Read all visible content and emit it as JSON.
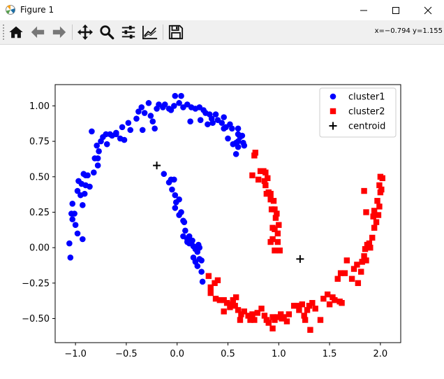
{
  "window": {
    "title": "Figure 1",
    "icons": {
      "app": "matplotlib-icon",
      "minimize": "minimize-icon",
      "maximize": "maximize-icon",
      "close": "close-icon"
    }
  },
  "toolbar": {
    "tools": [
      {
        "name": "home-button",
        "icon": "home-icon"
      },
      {
        "name": "back-button",
        "icon": "arrow-left-icon"
      },
      {
        "name": "forward-button",
        "icon": "arrow-right-icon"
      },
      {
        "name": "pan-button",
        "icon": "move-icon"
      },
      {
        "name": "zoom-button",
        "icon": "magnifier-icon"
      },
      {
        "name": "subplots-button",
        "icon": "sliders-icon"
      },
      {
        "name": "edit-axes-button",
        "icon": "line-chart-icon"
      },
      {
        "name": "save-button",
        "icon": "floppy-disk-icon"
      }
    ],
    "coordinates": "x=−0.794 y=1.155"
  },
  "chart_data": {
    "type": "scatter",
    "xlim": [
      -1.2,
      2.2
    ],
    "ylim": [
      -0.67,
      1.15
    ],
    "xticks": [
      -1.0,
      -0.5,
      0.0,
      0.5,
      1.0,
      1.5,
      2.0
    ],
    "xtick_labels": [
      "−1.0",
      "−0.5",
      "0.0",
      "0.5",
      "1.0",
      "1.5",
      "2.0"
    ],
    "yticks": [
      -0.5,
      -0.25,
      0.0,
      0.25,
      0.5,
      0.75,
      1.0
    ],
    "ytick_labels": [
      "−0.50",
      "−0.25",
      "0.00",
      "0.25",
      "0.50",
      "0.75",
      "1.00"
    ],
    "grid": false,
    "legend_position": "top-right",
    "series": [
      {
        "name": "cluster1",
        "marker": "circle",
        "color": "#0000ff",
        "points": [
          [
            -1.06,
            0.03
          ],
          [
            -1.04,
            0.24
          ],
          [
            -1.03,
            0.2
          ],
          [
            -1.01,
            0.24
          ],
          [
            -1.0,
            0.16
          ],
          [
            -1.03,
            0.31
          ],
          [
            -1.05,
            -0.07
          ],
          [
            -0.98,
            0.1
          ],
          [
            -0.93,
            0.06
          ],
          [
            -0.98,
            0.4
          ],
          [
            -0.97,
            0.47
          ],
          [
            -0.94,
            0.45
          ],
          [
            -0.95,
            0.37
          ],
          [
            -0.92,
            0.52
          ],
          [
            -0.91,
            0.38
          ],
          [
            -0.93,
            0.3
          ],
          [
            -0.9,
            0.44
          ],
          [
            -0.88,
            0.51
          ],
          [
            -0.86,
            0.43
          ],
          [
            -0.82,
            0.53
          ],
          [
            -0.9,
            0.51
          ],
          [
            -0.81,
            0.63
          ],
          [
            -0.78,
            0.58
          ],
          [
            -0.77,
            0.68
          ],
          [
            -0.79,
            0.72
          ],
          [
            -0.75,
            0.75
          ],
          [
            -0.73,
            0.78
          ],
          [
            -0.69,
            0.73
          ],
          [
            -0.64,
            0.79
          ],
          [
            -0.6,
            0.8
          ],
          [
            -0.56,
            0.77
          ],
          [
            -0.54,
            0.85
          ],
          [
            -0.48,
            0.88
          ],
          [
            -0.46,
            0.83
          ],
          [
            -0.52,
            0.76
          ],
          [
            -0.6,
            0.81
          ],
          [
            -0.66,
            0.8
          ],
          [
            -0.7,
            0.8
          ],
          [
            -0.78,
            0.63
          ],
          [
            -0.84,
            0.82
          ],
          [
            -0.4,
            0.91
          ],
          [
            -0.38,
            0.96
          ],
          [
            -0.35,
            0.99
          ],
          [
            -0.34,
            0.83
          ],
          [
            -0.32,
            0.95
          ],
          [
            -0.28,
            1.02
          ],
          [
            -0.24,
            0.89
          ],
          [
            -0.2,
            0.98
          ],
          [
            -0.26,
            0.93
          ],
          [
            -0.22,
            0.84
          ],
          [
            -0.18,
            1.01
          ],
          [
            -0.14,
            0.99
          ],
          [
            -0.12,
            1.01
          ],
          [
            -0.08,
            0.98
          ],
          [
            -0.06,
            0.97
          ],
          [
            -0.03,
            1.0
          ],
          [
            -0.02,
            1.07
          ],
          [
            0.04,
            1.07
          ],
          [
            0.02,
            1.02
          ],
          [
            0.06,
            0.99
          ],
          [
            0.1,
            1.01
          ],
          [
            0.14,
            0.99
          ],
          [
            0.18,
            0.98
          ],
          [
            0.22,
            0.99
          ],
          [
            0.26,
            0.97
          ],
          [
            0.28,
            0.95
          ],
          [
            0.32,
            0.94
          ],
          [
            0.34,
            0.91
          ],
          [
            0.38,
            0.94
          ],
          [
            0.4,
            0.9
          ],
          [
            0.44,
            0.88
          ],
          [
            0.46,
            0.92
          ],
          [
            0.48,
            0.85
          ],
          [
            0.54,
            0.84
          ],
          [
            0.52,
            0.87
          ],
          [
            0.6,
            0.84
          ],
          [
            0.6,
            0.8
          ],
          [
            0.62,
            0.78
          ],
          [
            0.64,
            0.79
          ],
          [
            0.6,
            0.75
          ],
          [
            0.58,
            0.74
          ],
          [
            0.65,
            0.74
          ],
          [
            0.66,
            0.72
          ],
          [
            0.55,
            0.73
          ],
          [
            0.6,
            0.71
          ],
          [
            0.58,
            0.66
          ],
          [
            0.13,
            0.89
          ],
          [
            0.23,
            0.9
          ],
          [
            0.3,
            0.87
          ],
          [
            0.35,
            0.88
          ],
          [
            0.46,
            0.84
          ],
          [
            0.5,
            0.77
          ],
          [
            -0.13,
            0.52
          ],
          [
            -0.08,
            0.46
          ],
          [
            -0.05,
            0.41
          ],
          [
            -0.06,
            0.48
          ],
          [
            -0.03,
            0.48
          ],
          [
            -0.02,
            0.37
          ],
          [
            -0.01,
            0.32
          ],
          [
            0.02,
            0.34
          ],
          [
            -0.02,
            0.28
          ],
          [
            0.02,
            0.23
          ],
          [
            0.04,
            0.25
          ],
          [
            0.06,
            0.19
          ],
          [
            0.07,
            0.18
          ],
          [
            0.08,
            0.12
          ],
          [
            0.06,
            0.08
          ],
          [
            0.1,
            0.06
          ],
          [
            0.12,
            0.03
          ],
          [
            0.14,
            0.03
          ],
          [
            0.16,
            0.01
          ],
          [
            0.18,
            -0.01
          ],
          [
            0.2,
            -0.03
          ],
          [
            0.21,
            0.02
          ],
          [
            0.22,
            0.0
          ],
          [
            0.22,
            -0.08
          ],
          [
            0.24,
            -0.09
          ],
          [
            0.16,
            -0.07
          ],
          [
            0.18,
            -0.1
          ],
          [
            0.2,
            -0.13
          ],
          [
            0.24,
            -0.17
          ],
          [
            0.25,
            -0.24
          ],
          [
            0.1,
            0.04
          ],
          [
            0.12,
            0.08
          ],
          [
            0.15,
            0.05
          ]
        ]
      },
      {
        "name": "cluster2",
        "marker": "square",
        "color": "#ff0000",
        "points": [
          [
            0.74,
            0.51
          ],
          [
            0.76,
            0.65
          ],
          [
            0.77,
            0.67
          ],
          [
            0.8,
            0.48
          ],
          [
            0.82,
            0.54
          ],
          [
            0.85,
            0.54
          ],
          [
            0.86,
            0.47
          ],
          [
            0.87,
            0.53
          ],
          [
            0.89,
            0.49
          ],
          [
            0.87,
            0.44
          ],
          [
            0.88,
            0.38
          ],
          [
            0.9,
            0.39
          ],
          [
            0.92,
            0.38
          ],
          [
            0.92,
            0.34
          ],
          [
            0.95,
            0.33
          ],
          [
            0.93,
            0.27
          ],
          [
            0.96,
            0.27
          ],
          [
            0.98,
            0.24
          ],
          [
            0.97,
            0.21
          ],
          [
            0.94,
            0.14
          ],
          [
            0.96,
            0.13
          ],
          [
            0.99,
            0.1
          ],
          [
            1.0,
            0.16
          ],
          [
            0.92,
            0.04
          ],
          [
            0.94,
            0.06
          ],
          [
            0.99,
            0.04
          ],
          [
            0.96,
            -0.02
          ],
          [
            1.01,
            -0.02
          ],
          [
            0.31,
            -0.2
          ],
          [
            0.33,
            -0.28
          ],
          [
            0.37,
            -0.25
          ],
          [
            0.4,
            -0.23
          ],
          [
            0.38,
            -0.36
          ],
          [
            0.42,
            -0.37
          ],
          [
            0.33,
            -0.32
          ],
          [
            0.46,
            -0.37
          ],
          [
            0.49,
            -0.39
          ],
          [
            0.53,
            -0.4
          ],
          [
            0.55,
            -0.37
          ],
          [
            0.58,
            -0.35
          ],
          [
            0.46,
            -0.45
          ],
          [
            0.52,
            -0.42
          ],
          [
            0.57,
            -0.41
          ],
          [
            0.6,
            -0.44
          ],
          [
            0.63,
            -0.47
          ],
          [
            0.62,
            -0.51
          ],
          [
            0.66,
            -0.45
          ],
          [
            0.7,
            -0.48
          ],
          [
            0.74,
            -0.47
          ],
          [
            0.72,
            -0.51
          ],
          [
            0.76,
            -0.51
          ],
          [
            0.79,
            -0.46
          ],
          [
            0.83,
            -0.43
          ],
          [
            0.86,
            -0.48
          ],
          [
            0.88,
            -0.51
          ],
          [
            0.9,
            -0.53
          ],
          [
            0.94,
            -0.49
          ],
          [
            0.96,
            -0.51
          ],
          [
            0.99,
            -0.49
          ],
          [
            1.02,
            -0.47
          ],
          [
            0.94,
            -0.57
          ],
          [
            1.03,
            -0.5
          ],
          [
            1.05,
            -0.49
          ],
          [
            1.08,
            -0.52
          ],
          [
            1.1,
            -0.47
          ],
          [
            1.15,
            -0.41
          ],
          [
            1.18,
            -0.41
          ],
          [
            1.2,
            -0.44
          ],
          [
            1.23,
            -0.4
          ],
          [
            1.25,
            -0.48
          ],
          [
            1.26,
            -0.51
          ],
          [
            1.28,
            -0.44
          ],
          [
            1.3,
            -0.41
          ],
          [
            1.31,
            -0.58
          ],
          [
            1.33,
            -0.39
          ],
          [
            1.36,
            -0.43
          ],
          [
            1.41,
            -0.51
          ],
          [
            1.44,
            -0.36
          ],
          [
            1.48,
            -0.33
          ],
          [
            1.5,
            -0.4
          ],
          [
            1.53,
            -0.35
          ],
          [
            1.55,
            -0.37
          ],
          [
            1.6,
            -0.38
          ],
          [
            1.62,
            -0.39
          ],
          [
            1.58,
            -0.22
          ],
          [
            1.61,
            -0.18
          ],
          [
            1.65,
            -0.18
          ],
          [
            1.67,
            -0.09
          ],
          [
            1.72,
            -0.22
          ],
          [
            1.74,
            -0.15
          ],
          [
            1.78,
            -0.25
          ],
          [
            1.81,
            -0.17
          ],
          [
            1.77,
            -0.12
          ],
          [
            1.82,
            -0.1
          ],
          [
            1.84,
            -0.06
          ],
          [
            1.86,
            -0.09
          ],
          [
            1.85,
            -0.01
          ],
          [
            1.89,
            0.03
          ],
          [
            1.92,
            0.07
          ],
          [
            1.94,
            0.14
          ],
          [
            1.93,
            0.22
          ],
          [
            1.96,
            0.18
          ],
          [
            1.98,
            0.23
          ],
          [
            1.99,
            0.29
          ],
          [
            1.97,
            0.33
          ],
          [
            1.94,
            0.26
          ],
          [
            2.0,
            0.39
          ],
          [
            2.01,
            0.41
          ],
          [
            1.99,
            0.44
          ],
          [
            2.0,
            0.5
          ],
          [
            2.02,
            0.49
          ],
          [
            1.84,
            0.4
          ],
          [
            1.86,
            0.25
          ],
          [
            1.9,
            0.0
          ],
          [
            1.87,
            0.02
          ]
        ]
      },
      {
        "name": "centroid",
        "marker": "plus",
        "color": "#000000",
        "points": [
          [
            -0.2,
            0.58
          ],
          [
            1.21,
            -0.08
          ]
        ]
      }
    ]
  }
}
